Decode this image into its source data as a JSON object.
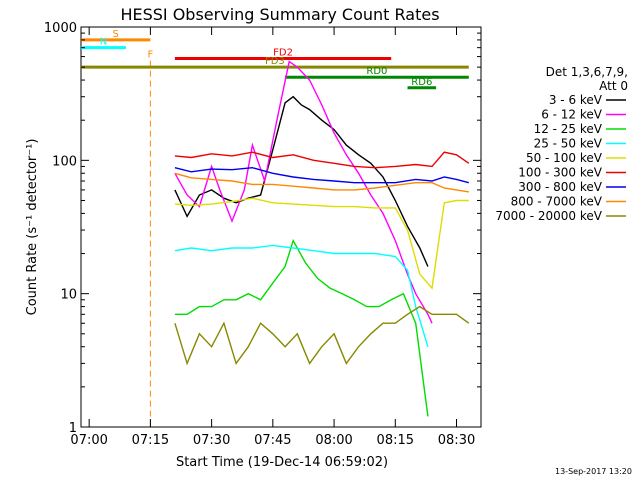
{
  "chart_data": {
    "type": "line",
    "title": "HESSI Observing Summary Count Rates",
    "xlabel": "Start Time (19-Dec-14 06:59:02)",
    "ylabel": "Count Rate (s⁻¹ detector⁻¹)",
    "xlim": [
      "06:58",
      "08:36"
    ],
    "ylim": [
      1,
      1000
    ],
    "yscale": "log",
    "x_ticks": [
      "07:00",
      "07:15",
      "07:30",
      "07:45",
      "08:00",
      "08:15",
      "08:30"
    ],
    "y_ticks": [
      "1",
      "10",
      "100",
      "1000"
    ],
    "legend": {
      "header": [
        "Det 1,3,6,7,9,",
        "Att 0"
      ],
      "position": "right"
    },
    "series": [
      {
        "name": "3 - 6 keV",
        "color": "#000000",
        "x": [
          "07:21",
          "07:24",
          "07:27",
          "07:30",
          "07:33",
          "07:36",
          "07:39",
          "07:42",
          "07:45",
          "07:48",
          "07:50",
          "07:52",
          "07:54",
          "07:57",
          "08:00",
          "08:03",
          "08:06",
          "08:09",
          "08:12",
          "08:15",
          "08:18",
          "08:21",
          "08:23"
        ],
        "y": [
          60,
          38,
          55,
          60,
          52,
          48,
          52,
          55,
          120,
          270,
          300,
          260,
          240,
          200,
          170,
          130,
          110,
          95,
          75,
          50,
          32,
          22,
          16
        ]
      },
      {
        "name": "6 - 12 keV",
        "color": "#ff00ff",
        "x": [
          "07:21",
          "07:24",
          "07:27",
          "07:30",
          "07:32",
          "07:35",
          "07:38",
          "07:40",
          "07:43",
          "07:46",
          "07:49",
          "07:51",
          "07:54",
          "07:57",
          "08:00",
          "08:03",
          "08:06",
          "08:09",
          "08:12",
          "08:15",
          "08:18",
          "08:20",
          "08:23",
          "08:24"
        ],
        "x_note": "",
        "y": [
          80,
          55,
          45,
          90,
          60,
          35,
          60,
          130,
          70,
          200,
          550,
          500,
          400,
          260,
          160,
          110,
          80,
          55,
          40,
          25,
          14,
          10,
          7,
          6
        ]
      },
      {
        "name": "12 - 25 keV",
        "color": "#00dd00",
        "x": [
          "07:21",
          "07:24",
          "07:27",
          "07:30",
          "07:33",
          "07:36",
          "07:39",
          "07:42",
          "07:45",
          "07:48",
          "07:50",
          "07:53",
          "07:56",
          "07:59",
          "08:02",
          "08:05",
          "08:08",
          "08:11",
          "08:14",
          "08:17",
          "08:20",
          "08:23"
        ],
        "y": [
          7,
          7,
          8,
          8,
          9,
          9,
          10,
          9,
          12,
          16,
          25,
          17,
          13,
          11,
          10,
          9,
          8,
          8,
          9,
          10,
          6,
          1.2
        ]
      },
      {
        "name": "25 - 50 keV",
        "color": "#00ffff",
        "x": [
          "07:21",
          "07:25",
          "07:30",
          "07:35",
          "07:40",
          "07:45",
          "07:50",
          "07:55",
          "08:00",
          "08:05",
          "08:10",
          "08:15",
          "08:18",
          "08:20",
          "08:23"
        ],
        "y": [
          21,
          22,
          21,
          22,
          22,
          23,
          22,
          21,
          20,
          20,
          20,
          19,
          15,
          8,
          4
        ]
      },
      {
        "name": "50 - 100 keV",
        "color": "#dddd00",
        "x": [
          "07:21",
          "07:25",
          "07:30",
          "07:35",
          "07:40",
          "07:45",
          "07:50",
          "07:55",
          "08:00",
          "08:05",
          "08:10",
          "08:15",
          "08:18",
          "08:21",
          "08:24",
          "08:27",
          "08:30",
          "08:33"
        ],
        "y": [
          47,
          46,
          47,
          49,
          52,
          48,
          47,
          46,
          45,
          45,
          44,
          44,
          30,
          14,
          11,
          48,
          50,
          50
        ]
      },
      {
        "name": "100 - 300 keV",
        "color": "#ee0000",
        "x": [
          "07:21",
          "07:25",
          "07:30",
          "07:35",
          "07:40",
          "07:45",
          "07:50",
          "07:55",
          "08:00",
          "08:05",
          "08:10",
          "08:15",
          "08:20",
          "08:24",
          "08:27",
          "08:30",
          "08:33"
        ],
        "y": [
          108,
          105,
          112,
          108,
          115,
          105,
          110,
          100,
          95,
          90,
          88,
          90,
          93,
          90,
          115,
          110,
          95
        ]
      },
      {
        "name": "300 - 800 keV",
        "color": "#0000ee",
        "x": [
          "07:21",
          "07:25",
          "07:30",
          "07:35",
          "07:40",
          "07:45",
          "07:50",
          "07:55",
          "08:00",
          "08:05",
          "08:10",
          "08:15",
          "08:20",
          "08:24",
          "08:27",
          "08:30",
          "08:33"
        ],
        "y": [
          88,
          82,
          86,
          85,
          88,
          80,
          75,
          72,
          70,
          68,
          68,
          68,
          72,
          70,
          75,
          72,
          68
        ]
      },
      {
        "name": "800 - 7000 keV",
        "color": "#ff8800",
        "x": [
          "07:21",
          "07:25",
          "07:30",
          "07:35",
          "07:40",
          "07:45",
          "07:50",
          "07:55",
          "08:00",
          "08:05",
          "08:10",
          "08:15",
          "08:20",
          "08:24",
          "08:27",
          "08:30",
          "08:33"
        ],
        "y": [
          80,
          74,
          72,
          70,
          66,
          66,
          64,
          62,
          60,
          60,
          62,
          65,
          68,
          68,
          62,
          60,
          58
        ]
      },
      {
        "name": "7000 - 20000 keV",
        "color": "#888800",
        "x": [
          "07:21",
          "07:24",
          "07:27",
          "07:30",
          "07:33",
          "07:36",
          "07:39",
          "07:42",
          "07:45",
          "07:48",
          "07:51",
          "07:54",
          "07:57",
          "08:00",
          "08:03",
          "08:06",
          "08:09",
          "08:12",
          "08:15",
          "08:18",
          "08:21",
          "08:24",
          "08:27",
          "08:30",
          "08:33"
        ],
        "y": [
          6,
          3,
          5,
          4,
          6,
          3,
          4,
          6,
          5,
          4,
          5,
          3,
          4,
          5,
          3,
          4,
          5,
          6,
          6,
          7,
          8,
          7,
          7,
          7,
          6
        ]
      }
    ],
    "events": [
      {
        "label": "S",
        "color": "#ff8800",
        "x_start": "06:58",
        "x_end": "07:15",
        "y": 800
      },
      {
        "label": "N",
        "color": "#00ffff",
        "x_start": "06:58",
        "x_end": "07:09",
        "y": 700
      },
      {
        "label": "F",
        "color": "#ff8800",
        "x_start": "07:15",
        "x_end": "07:15",
        "y": 560
      },
      {
        "label": "FD2",
        "color": "#ee0000",
        "x_start": "07:21",
        "x_end": "08:14",
        "y": 580
      },
      {
        "label": "FD3",
        "color": "#888800",
        "x_start": "06:58",
        "x_end": "08:33",
        "y": 500
      },
      {
        "label": "RD0",
        "color": "#008800",
        "x_start": "07:48",
        "x_end": "08:33",
        "y": 420
      },
      {
        "label": "RD6",
        "color": "#008800",
        "x_start": "08:18",
        "x_end": "08:25",
        "y": 350
      }
    ]
  },
  "footer": {
    "timestamp": "13-Sep-2017 13:20"
  }
}
